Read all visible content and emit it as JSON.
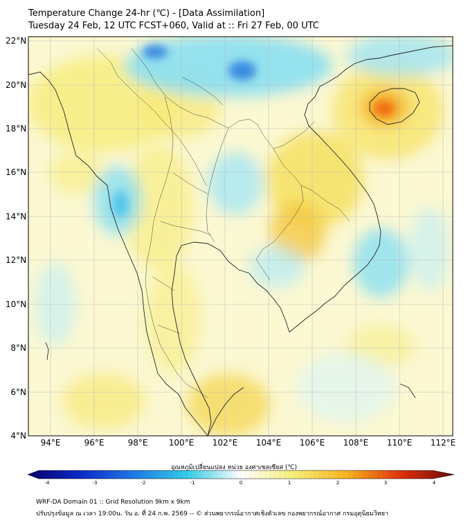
{
  "header": {
    "title": "Temperature Change 24-hr (℃) - [Data Assimilation]",
    "subtitle": "Tuesday 24 Feb, 12 UTC FCST+060, Valid at :: Fri 27 Feb, 00 UTC"
  },
  "axes": {
    "lat_labels": [
      "22°N",
      "20°N",
      "18°N",
      "16°N",
      "14°N",
      "12°N",
      "10°N",
      "8°N",
      "6°N",
      "4°N"
    ],
    "lon_labels": [
      "94°E",
      "96°E",
      "98°E",
      "100°E",
      "102°E",
      "104°E",
      "106°E",
      "108°E",
      "110°E",
      "112°E"
    ]
  },
  "colorbar": {
    "label": "อุณหภูมิเปลี่ยนแปลง หน่วย องศาเซลเซียส (℃)",
    "ticks": [
      "-4",
      "-3",
      "-2",
      "-1",
      "0",
      "1",
      "2",
      "3",
      "4"
    ],
    "min": -4,
    "max": 4,
    "colors": [
      "#08006e",
      "#0c2bc8",
      "#1e7be6",
      "#35cde8",
      "#ffffff",
      "#f5ee78",
      "#f7b21e",
      "#e0320c",
      "#6e0a08"
    ]
  },
  "footer": {
    "line1": "WRF-DA Domain 01 :: Grid Resolution 9km x 9km",
    "line2": "ปรับปรุงข้อมูล ณ เวลา 19:00น. วัน อ. ที่ 24 ก.พ. 2569 -- © ส่วนพยากรณ์อากาศเชิงตัวเลข กองพยากรณ์อากาศ กรมอุตุนิยมวิทยา"
  },
  "colors": {
    "field_warm": "#f6ec7a",
    "field_cool": "#8adff2",
    "field_neutral": "#fbf8d2",
    "coast": "#222222",
    "grid": "#b4b4b4"
  }
}
